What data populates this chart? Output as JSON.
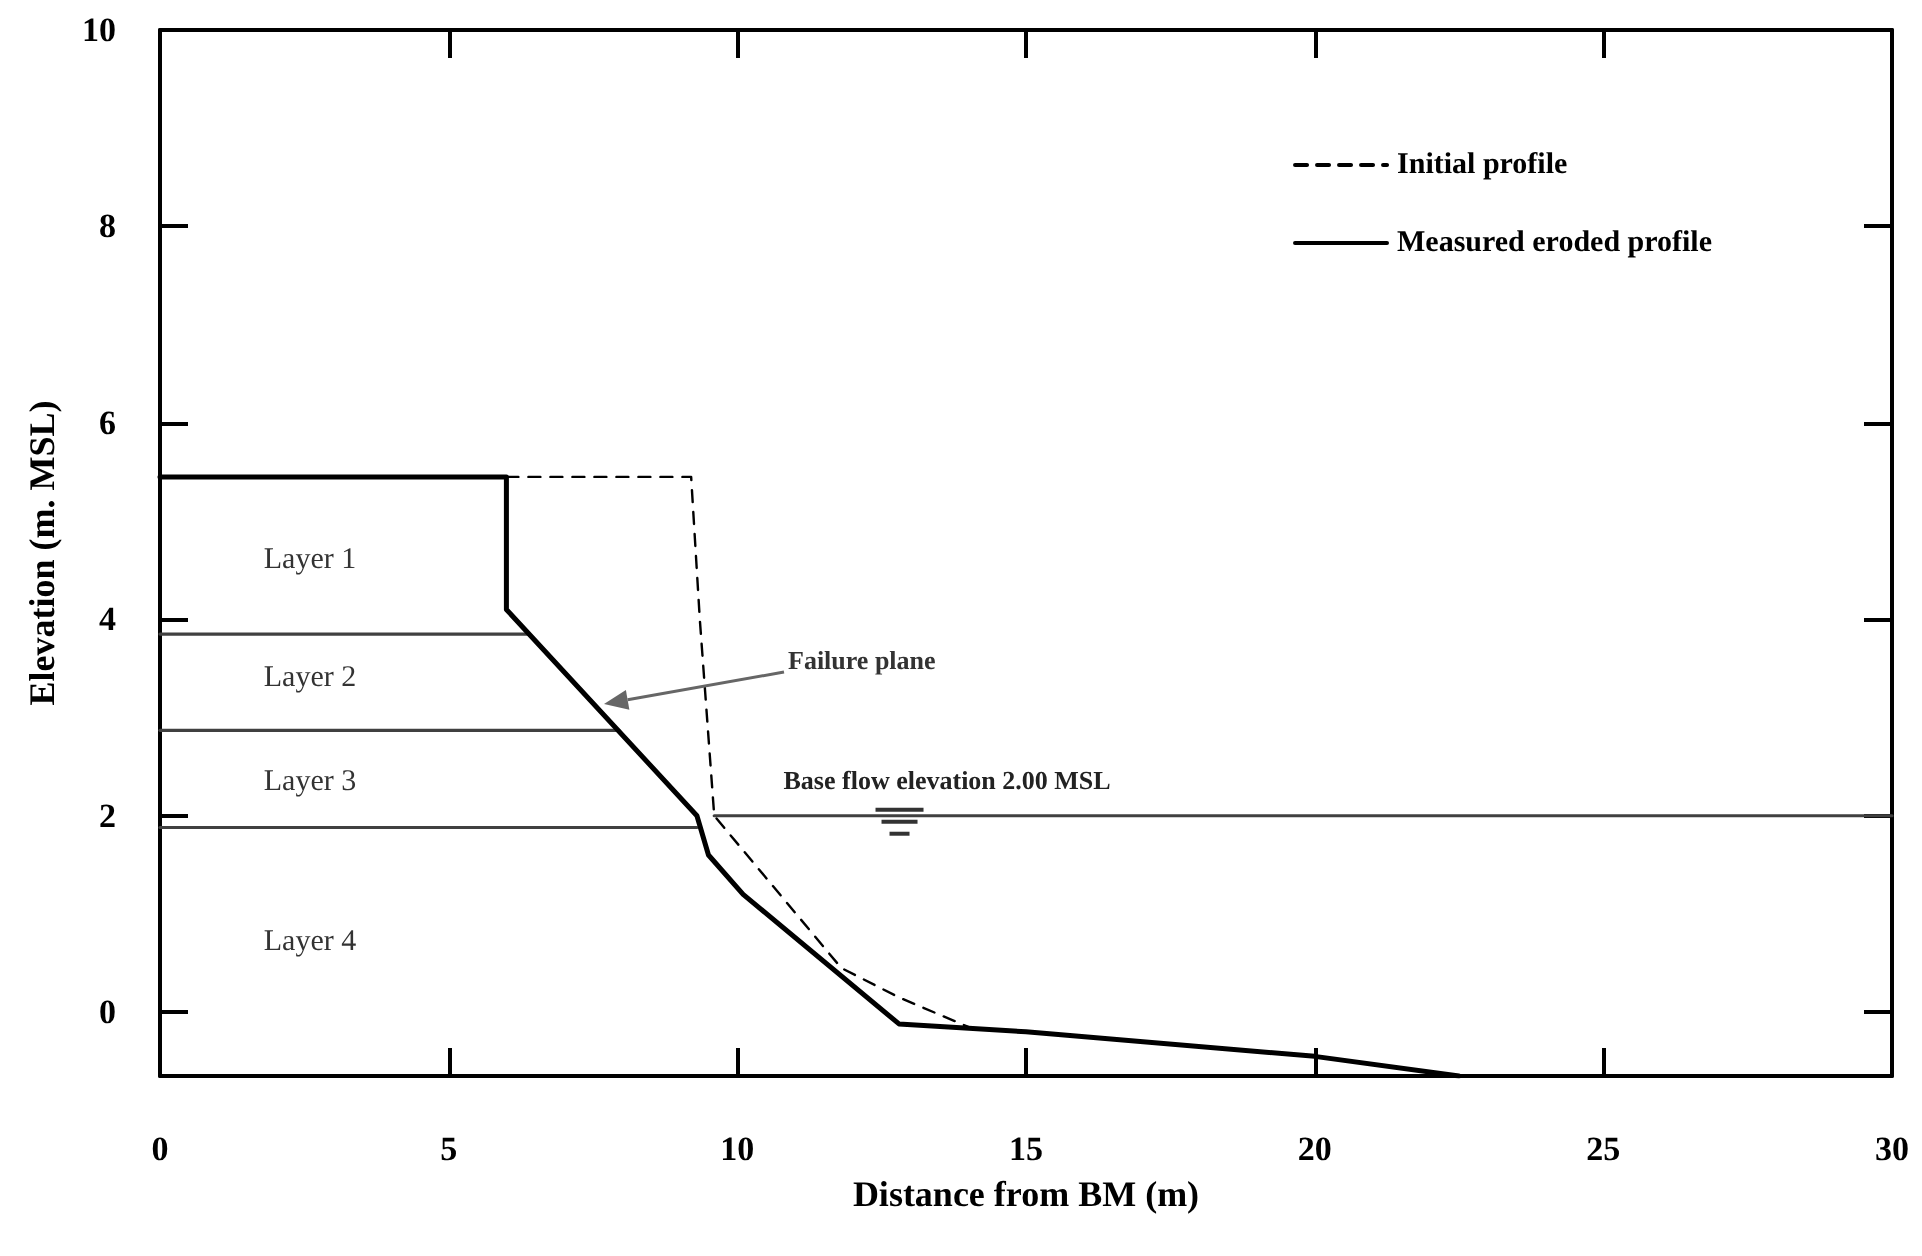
{
  "chart_data": {
    "type": "line",
    "xlabel": "Distance from BM (m)",
    "ylabel": "Elevation (m. MSL)",
    "xlim": [
      0,
      30
    ],
    "xticks": [
      0,
      5,
      10,
      15,
      20,
      25,
      30
    ],
    "ylim": [
      -0.65,
      10
    ],
    "yticks": [
      0,
      2,
      4,
      6,
      8,
      10
    ],
    "grid": false,
    "legend": "top right",
    "marker": "none",
    "series": [
      {
        "name": "Initial profile",
        "color": "#000000",
        "line_style": "dashed",
        "x": [
          6.0,
          9.2,
          9.35,
          9.6,
          11.8,
          12.8,
          14.0
        ],
        "values": [
          5.45,
          5.45,
          4.0,
          2.0,
          0.45,
          0.15,
          -0.15
        ]
      },
      {
        "name": "Measured eroded profile",
        "color": "#000000",
        "line_style": "solid",
        "x": [
          0,
          6.0,
          6.0,
          9.3,
          9.5,
          10.1,
          12.8,
          15,
          20,
          22.5
        ],
        "values": [
          5.45,
          5.45,
          4.1,
          2.0,
          1.6,
          1.2,
          -0.12,
          -0.2,
          -0.45,
          -0.65
        ]
      },
      {
        "color": "#404040",
        "line_style": "solid",
        "x": [
          0,
          6.4
        ],
        "values": [
          3.85,
          3.85
        ]
      },
      {
        "color": "#404040",
        "line_style": "solid",
        "x": [
          0,
          7.95
        ],
        "values": [
          2.87,
          2.87
        ]
      },
      {
        "color": "#404040",
        "line_style": "solid",
        "x": [
          0,
          9.3
        ],
        "values": [
          1.88,
          1.88
        ]
      },
      {
        "color": "#404040",
        "line_style": "solid",
        "x": [
          9.6,
          30
        ],
        "values": [
          2.0,
          2.0
        ]
      }
    ],
    "annotations": [
      "Layer 1",
      "Layer 2",
      "Layer 3",
      "Layer 4",
      "Failure plane",
      {
        "text": "Base flow elevation 2.00 MSL",
        "x": 10.8,
        "y": 2.0
      }
    ]
  }
}
